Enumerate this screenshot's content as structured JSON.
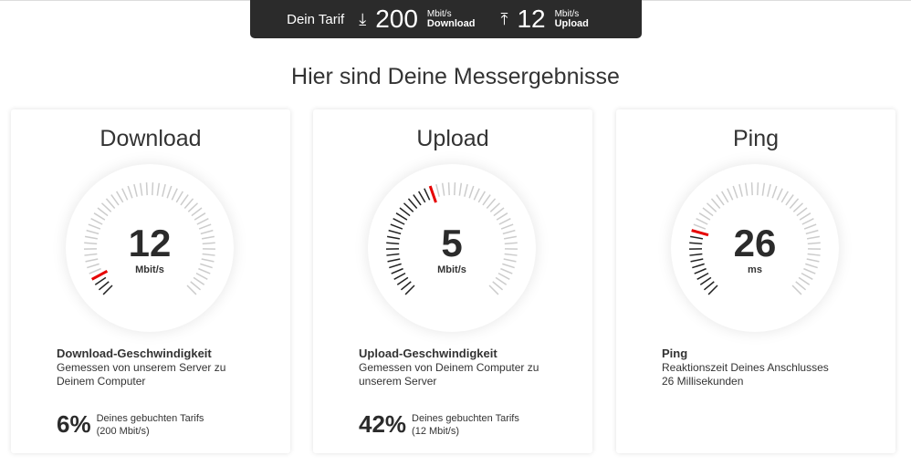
{
  "tarif": {
    "label": "Dein Tarif",
    "download_value": "200",
    "download_unit": "Mbit/s",
    "download_label": "Download",
    "upload_value": "12",
    "upload_unit": "Mbit/s",
    "upload_label": "Upload"
  },
  "title": "Hier sind Deine Messergebnisse",
  "accent_color": "#e60000",
  "cards": [
    {
      "title": "Download",
      "value": "12",
      "unit": "Mbit/s",
      "gauge_fraction": 0.06,
      "heading": "Download-Geschwindigkeit",
      "desc1": "Gemessen von unserem Server zu",
      "desc2": "Deinem Computer",
      "percent": "6%",
      "pct_line1": "Deines gebuchten Tarifs",
      "pct_line2": "(200 Mbit/s)"
    },
    {
      "title": "Upload",
      "value": "5",
      "unit": "Mbit/s",
      "gauge_fraction": 0.42,
      "heading": "Upload-Geschwindigkeit",
      "desc1": "Gemessen von Deinem Computer zu",
      "desc2": "unserem Server",
      "percent": "42%",
      "pct_line1": "Deines gebuchten Tarifs",
      "pct_line2": "(12 Mbit/s)"
    },
    {
      "title": "Ping",
      "value": "26",
      "unit": "ms",
      "gauge_fraction": 0.22,
      "heading": "Ping",
      "desc1": "Reaktionszeit Deines Anschlusses",
      "desc2": "26 Millisekunden"
    }
  ]
}
